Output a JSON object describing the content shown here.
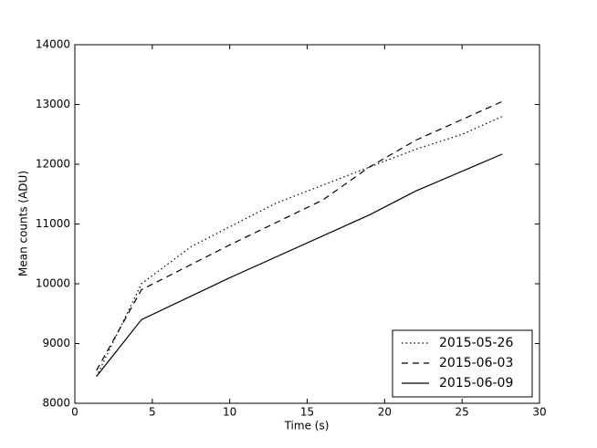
{
  "chart_data": {
    "type": "line",
    "xlabel": "Time (s)",
    "ylabel": "Mean counts (ADU)",
    "xlim": [
      0,
      30
    ],
    "xticks": [
      0,
      5,
      10,
      15,
      20,
      25,
      30
    ],
    "ylim": [
      8000,
      14000
    ],
    "yticks": [
      8000,
      9000,
      10000,
      11000,
      12000,
      13000,
      14000
    ],
    "legend": "lower right",
    "series": [
      {
        "name": "2015-05-26",
        "color": "#000000",
        "linestyle": "dotted",
        "x": [
          1.4,
          4.3,
          7.5,
          13,
          19,
          22,
          25,
          27.6
        ],
        "values": [
          8450,
          10000,
          10620,
          11350,
          11950,
          12250,
          12500,
          12800
        ]
      },
      {
        "name": "2015-06-03",
        "color": "#000000",
        "linestyle": "dashed",
        "x": [
          1.4,
          4.3,
          10,
          16,
          19,
          22,
          27.6
        ],
        "values": [
          8550,
          9900,
          10650,
          11400,
          11950,
          12400,
          13050
        ]
      },
      {
        "name": "2015-06-09",
        "color": "#000000",
        "linestyle": "solid",
        "x": [
          1.4,
          4.3,
          10,
          19,
          22,
          27.6
        ],
        "values": [
          8450,
          9400,
          10100,
          11150,
          11550,
          12170
        ]
      }
    ]
  }
}
